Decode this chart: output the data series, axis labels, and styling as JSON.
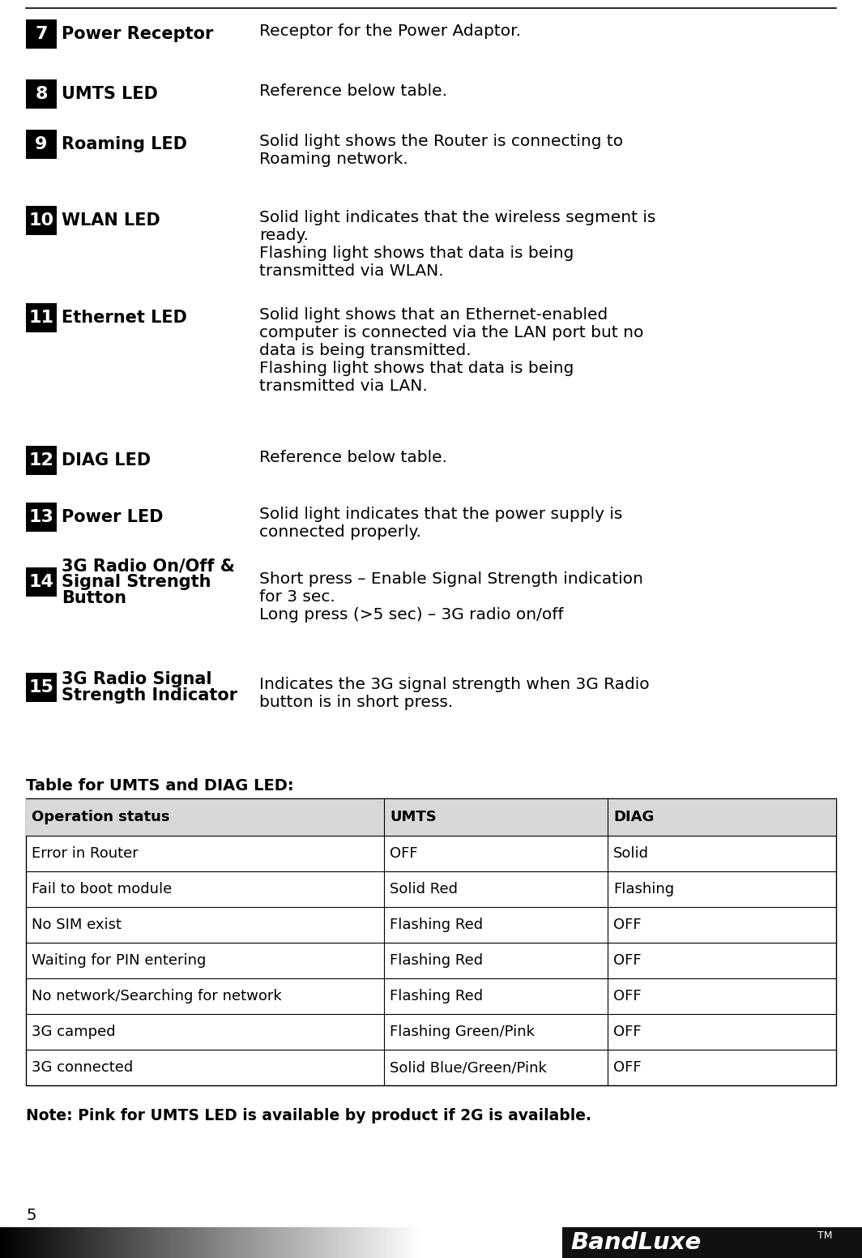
{
  "bg_color": "#ffffff",
  "badge_bg": "#000000",
  "badge_fg": "#ffffff",
  "items": [
    {
      "number": "7",
      "title": "Power Receptor",
      "desc_lines": [
        "Receptor for the Power Adaptor."
      ],
      "title_lines": 1
    },
    {
      "number": "8",
      "title": "UMTS LED",
      "desc_lines": [
        "Reference below table."
      ],
      "title_lines": 1
    },
    {
      "number": "9",
      "title": "Roaming LED",
      "desc_lines": [
        "Solid light shows the Router is connecting to",
        "Roaming network."
      ],
      "title_lines": 1
    },
    {
      "number": "10",
      "title": "WLAN LED",
      "desc_lines": [
        "Solid light indicates that the wireless segment is",
        "ready.",
        "Flashing light shows that data is being",
        "transmitted via WLAN."
      ],
      "title_lines": 1
    },
    {
      "number": "11",
      "title": "Ethernet LED",
      "desc_lines": [
        "Solid light shows that an Ethernet-enabled",
        "computer is connected via the LAN port but no",
        "data is being transmitted.",
        "Flashing light shows that data is being",
        "transmitted via LAN."
      ],
      "title_lines": 1
    },
    {
      "number": "12",
      "title": "DIAG LED",
      "desc_lines": [
        "Reference below table."
      ],
      "title_lines": 1
    },
    {
      "number": "13",
      "title": "Power LED",
      "desc_lines": [
        "Solid light indicates that the power supply is",
        "connected properly."
      ],
      "title_lines": 1
    },
    {
      "number": "14",
      "title_parts": [
        "3G Radio On/Off &",
        "Signal Strength",
        "Button"
      ],
      "desc_lines": [
        "Short press – Enable Signal Strength indication",
        "for 3 sec.",
        "Long press (>5 sec) – 3G radio on/off"
      ],
      "title_lines": 3
    },
    {
      "number": "15",
      "title_parts": [
        "3G Radio Signal",
        "Strength Indicator"
      ],
      "desc_lines": [
        "Indicates the 3G signal strength when 3G Radio",
        "button is in short press."
      ],
      "title_lines": 2
    }
  ],
  "table_title": "Table for UMTS and DIAG LED:",
  "table_headers": [
    "Operation status",
    "UMTS",
    "DIAG"
  ],
  "table_rows": [
    [
      "Error in Router",
      "OFF",
      "Solid"
    ],
    [
      "Fail to boot module",
      "Solid Red",
      "Flashing"
    ],
    [
      "No SIM exist",
      "Flashing Red",
      "OFF"
    ],
    [
      "Waiting for PIN entering",
      "Flashing Red",
      "OFF"
    ],
    [
      "No network/Searching for network",
      "Flashing Red",
      "OFF"
    ],
    [
      "3G camped",
      "Flashing Green/Pink",
      "OFF"
    ],
    [
      "3G connected",
      "Solid Blue/Green/Pink",
      "OFF"
    ]
  ],
  "note": "Note: Pink for UMTS LED is available by product if 2G is available.",
  "page_number": "5"
}
